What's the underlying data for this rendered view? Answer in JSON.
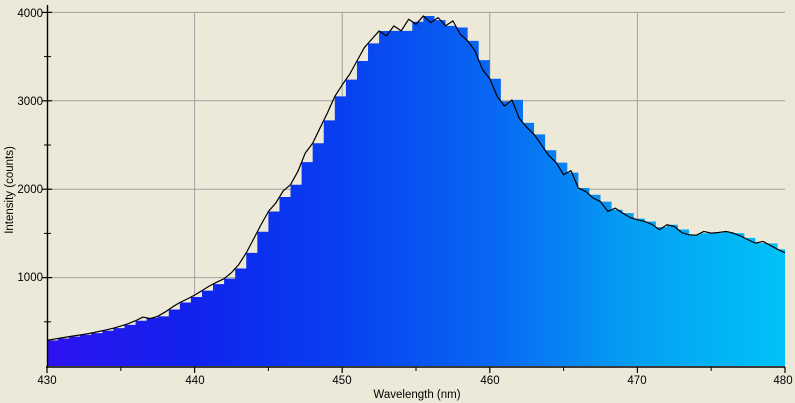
{
  "window": {
    "background_color": "#ece9d8"
  },
  "chart_data": {
    "type": "area",
    "title": "",
    "xlabel": "Wavelength (nm)",
    "ylabel": "Intensity (counts)",
    "xlim": [
      430,
      480
    ],
    "ylim": [
      0,
      4000
    ],
    "grid": true,
    "grid_color": "#a0a0a0",
    "axis_color": "#000000",
    "trace_color": "#000000",
    "x_tick_labels": [
      "430",
      "440",
      "450",
      "460",
      "470",
      "480"
    ],
    "x_major_ticks": [
      430,
      440,
      450,
      460,
      470,
      480
    ],
    "x_minor_ticks": [
      435,
      445,
      455,
      465,
      475
    ],
    "x_gridlines": [
      440,
      450,
      460,
      470
    ],
    "y_tick_labels": [
      "1000",
      "2000",
      "3000",
      "4000"
    ],
    "y_major_ticks": [
      1000,
      2000,
      3000,
      4000
    ],
    "y_minor_ticks": [
      500,
      1500,
      2500,
      3500
    ],
    "y_gridlines": [
      1000,
      2000,
      3000,
      4000
    ],
    "fill_gradient": [
      "#2e12f0",
      "#1023ee",
      "#0840f0",
      "#0866f2",
      "#05a0f4",
      "#00c2f7"
    ],
    "series": [
      {
        "name": "spectrum-fill",
        "style": "stepped-area",
        "bin_nm": 0.75
      },
      {
        "name": "spectrum-trace",
        "style": "line",
        "color": "#000000"
      }
    ],
    "x_start": 430,
    "x_step_nm": 0.5,
    "peak": {
      "wavelength": 455.5,
      "intensity": 3960
    },
    "intensities": [
      290,
      305,
      318,
      332,
      345,
      358,
      372,
      390,
      408,
      428,
      452,
      478,
      512,
      554,
      536,
      562,
      610,
      668,
      718,
      758,
      802,
      852,
      905,
      948,
      988,
      1056,
      1150,
      1280,
      1438,
      1598,
      1748,
      1843,
      1980,
      2051,
      2202,
      2410,
      2520,
      2693,
      2863,
      3050,
      3180,
      3299,
      3450,
      3602,
      3696,
      3790,
      3734,
      3848,
      3791,
      3922,
      3866,
      3960,
      3885,
      3941,
      3848,
      3904,
      3753,
      3678,
      3565,
      3356,
      3250,
      3050,
      2940,
      3010,
      2800,
      2700,
      2620,
      2500,
      2380,
      2300,
      2164,
      2210,
      2013,
      1975,
      1900,
      1860,
      1748,
      1786,
      1730,
      1680,
      1654,
      1635,
      1600,
      1541,
      1598,
      1578,
      1510,
      1484,
      1480,
      1522,
      1503,
      1510,
      1522,
      1503,
      1470,
      1428,
      1390,
      1409,
      1365,
      1320,
      1280
    ]
  }
}
